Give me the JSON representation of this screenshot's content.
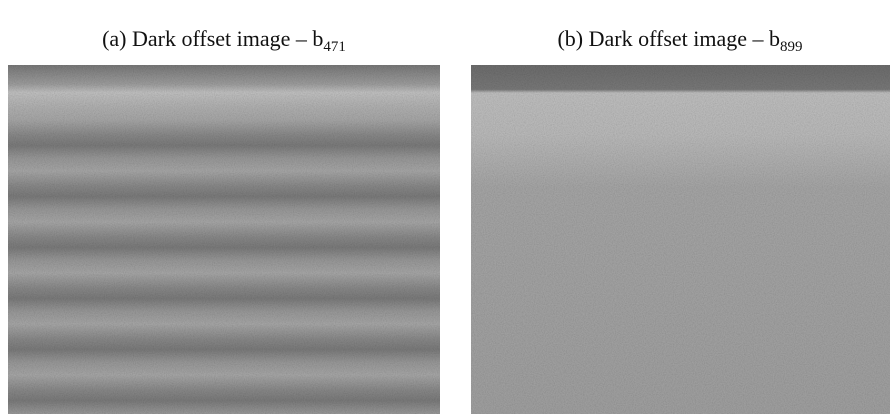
{
  "panels": [
    {
      "caption": {
        "text": "(a) Dark offset image – b",
        "subscript": "471"
      }
    },
    {
      "caption": {
        "text": "(b) Dark offset image – b",
        "subscript": "899"
      }
    }
  ]
}
